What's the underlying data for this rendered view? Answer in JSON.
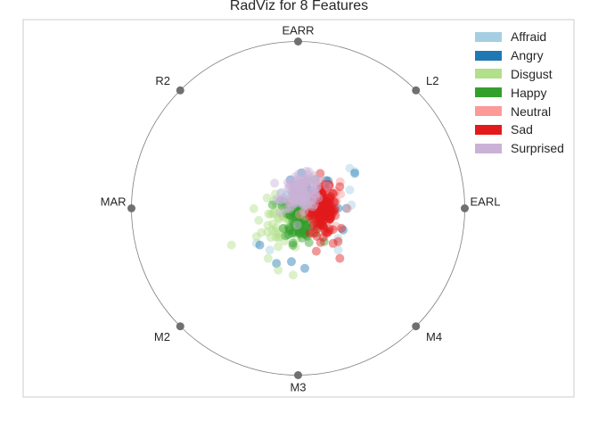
{
  "chart_data": {
    "type": "scatter",
    "subtype": "radviz",
    "title": "RadViz for 8 Features",
    "anchors": [
      "EARR",
      "L2",
      "EARL",
      "M4",
      "M3",
      "M2",
      "MAR",
      "R2"
    ],
    "grid": false,
    "legend_position": "top-right",
    "series": [
      {
        "name": "Affraid",
        "color": "#a6cee3",
        "center": [
          0.0,
          0.06
        ],
        "spread": [
          0.06,
          0.06
        ],
        "count": 25,
        "points": [
          [
            0.31,
            0.24
          ],
          [
            0.34,
            0.22
          ],
          [
            0.31,
            0.11
          ],
          [
            0.32,
            0.02
          ],
          [
            0.24,
            -0.25
          ],
          [
            0.24,
            -0.18
          ],
          [
            -0.25,
            -0.21
          ],
          [
            -0.17,
            -0.25
          ]
        ]
      },
      {
        "name": "Angry",
        "color": "#1f78b4",
        "center": [
          0.05,
          0.05
        ],
        "spread": [
          0.08,
          0.08
        ],
        "count": 20,
        "points": [
          [
            0.34,
            0.21
          ],
          [
            0.29,
            0.0
          ],
          [
            0.27,
            -0.13
          ],
          [
            -0.04,
            -0.32
          ],
          [
            -0.13,
            -0.33
          ],
          [
            0.04,
            -0.36
          ],
          [
            -0.23,
            -0.22
          ],
          [
            0.24,
            0.0
          ]
        ]
      },
      {
        "name": "Disgust",
        "color": "#b2df8a",
        "center": [
          -0.08,
          -0.09
        ],
        "spread": [
          0.09,
          0.07
        ],
        "count": 60,
        "points": [
          [
            -0.4,
            -0.22
          ],
          [
            -0.12,
            -0.37
          ],
          [
            -0.03,
            -0.4
          ],
          [
            -0.18,
            -0.3
          ],
          [
            -0.25,
            -0.17
          ],
          [
            0.09,
            0.18
          ],
          [
            -0.12,
            -0.23
          ],
          [
            -0.07,
            -0.13
          ]
        ]
      },
      {
        "name": "Happy",
        "color": "#33a02c",
        "center": [
          0.02,
          -0.06
        ],
        "spread": [
          0.05,
          0.07
        ],
        "count": 110,
        "points": []
      },
      {
        "name": "Neutral",
        "color": "#fb9a99",
        "center": [
          0.13,
          0.02
        ],
        "spread": [
          0.06,
          0.08
        ],
        "count": 40,
        "points": []
      },
      {
        "name": "Sad",
        "color": "#e31a1c",
        "center": [
          0.15,
          -0.02
        ],
        "spread": [
          0.04,
          0.07
        ],
        "count": 160,
        "points": [
          [
            0.25,
            0.13
          ],
          [
            0.26,
            -0.12
          ],
          [
            0.21,
            -0.21
          ],
          [
            0.25,
            -0.3
          ]
        ]
      },
      {
        "name": "Surprised",
        "color": "#cab2d6",
        "center": [
          0.03,
          0.1
        ],
        "spread": [
          0.06,
          0.05
        ],
        "count": 110,
        "points": [
          [
            0.07,
            0.06
          ],
          [
            -0.05,
            0.14
          ],
          [
            0.06,
            0.2
          ],
          [
            -0.1,
            0.05
          ],
          [
            0.0,
            0.14
          ]
        ]
      }
    ]
  }
}
